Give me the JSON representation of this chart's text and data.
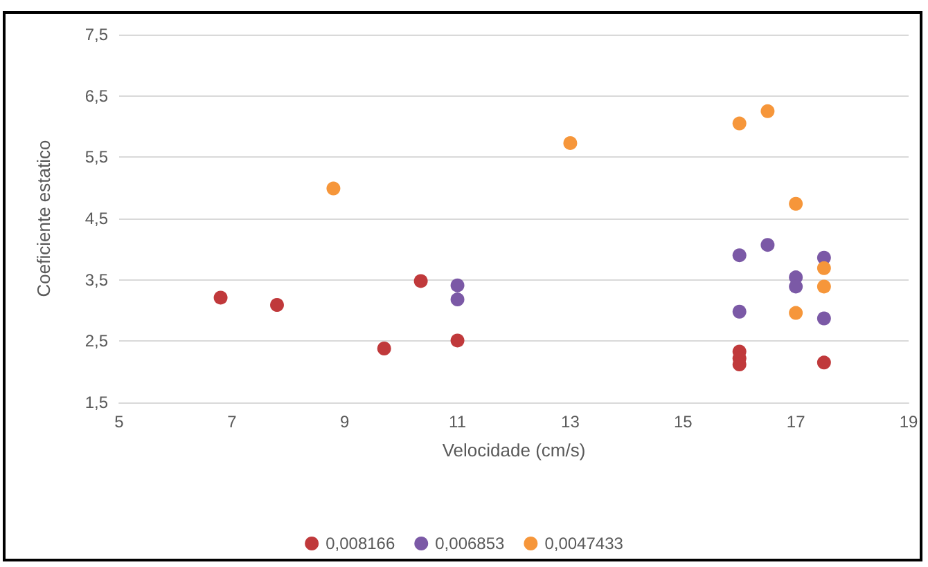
{
  "chart_data": {
    "type": "scatter",
    "xlabel": "Velocidade (cm/s)",
    "ylabel": "Coeficiente estatico",
    "xlim": [
      5,
      19
    ],
    "xticks": [
      5,
      7,
      9,
      11,
      13,
      15,
      17,
      19
    ],
    "ylim": [
      1.5,
      7.5
    ],
    "yticks": [
      {
        "value": 1.5,
        "label": "1,5"
      },
      {
        "value": 2.5,
        "label": "2,5"
      },
      {
        "value": 3.5,
        "label": "3,5"
      },
      {
        "value": 4.5,
        "label": "4,5"
      },
      {
        "value": 5.5,
        "label": "5,5"
      },
      {
        "value": 6.5,
        "label": "6,5"
      },
      {
        "value": 7.5,
        "label": "7,5"
      }
    ],
    "grid": "y",
    "legend": "bottom",
    "marker": "circle",
    "series": [
      {
        "name": "0,008166",
        "color": "#c0393b",
        "x": [
          6.8,
          7.8,
          9.7,
          10.35,
          11,
          16,
          16,
          16,
          17.5
        ],
        "values": [
          3.21,
          3.09,
          2.38,
          3.48,
          2.51,
          2.33,
          2.22,
          2.12,
          2.15
        ]
      },
      {
        "name": "0,006853",
        "color": "#7b59a6",
        "x": [
          11,
          11,
          16,
          16.5,
          17.5,
          17,
          17,
          16,
          17.5
        ],
        "values": [
          3.41,
          3.18,
          3.9,
          4.07,
          3.86,
          3.54,
          3.39,
          2.98,
          2.87
        ]
      },
      {
        "name": "0,0047433",
        "color": "#f6963a",
        "x": [
          8.8,
          13,
          16,
          16.5,
          17,
          17,
          17.5,
          17.5
        ],
        "values": [
          4.99,
          5.73,
          6.05,
          6.25,
          4.74,
          2.96,
          3.69,
          3.39
        ]
      }
    ]
  }
}
